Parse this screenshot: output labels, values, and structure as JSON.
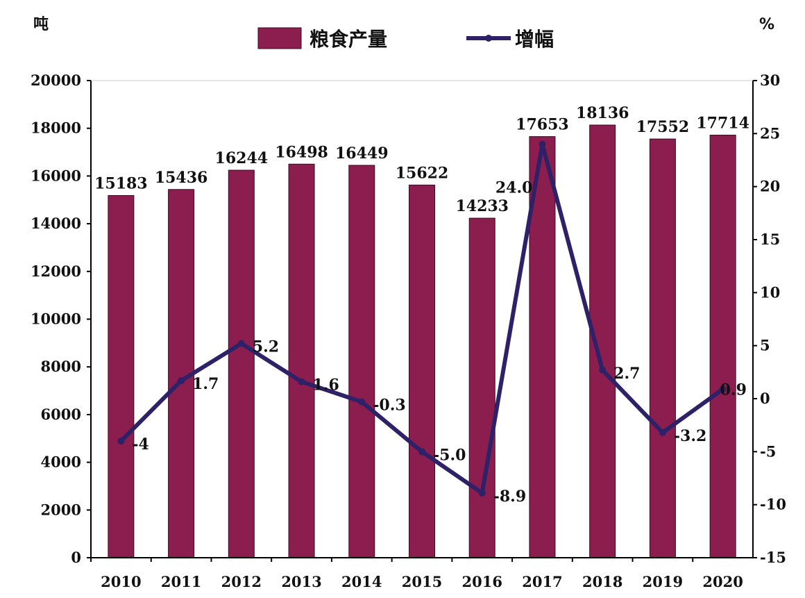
{
  "chart_data": {
    "type": "bar",
    "categories": [
      "2010",
      "2011",
      "2012",
      "2013",
      "2014",
      "2015",
      "2016",
      "2017",
      "2018",
      "2019",
      "2020"
    ],
    "series": [
      {
        "name": "粮食产量",
        "type": "bar",
        "axis": "left",
        "values": [
          15183,
          15436,
          16244,
          16498,
          16449,
          15622,
          14233,
          17653,
          18136,
          17552,
          17714
        ],
        "labels": [
          "15183",
          "15436",
          "16244",
          "16498",
          "16449",
          "15622",
          "14233",
          "17653",
          "18136",
          "17552",
          "17714"
        ]
      },
      {
        "name": "增幅",
        "type": "line",
        "axis": "right",
        "values": [
          -4,
          1.7,
          5.2,
          1.6,
          -0.3,
          -5.0,
          -8.9,
          24.0,
          2.7,
          -3.2,
          0.9
        ],
        "labels": [
          "-4",
          "1.7",
          "5.2",
          "1.6",
          "-0.3",
          "-5.0",
          "-8.9",
          "24.0",
          "2.7",
          "-3.2",
          "0.9"
        ]
      }
    ],
    "left_axis": {
      "unit": "吨",
      "min": 0,
      "max": 20000,
      "ticks": [
        "0",
        "2000",
        "4000",
        "6000",
        "8000",
        "10000",
        "12000",
        "14000",
        "16000",
        "18000",
        "20000"
      ]
    },
    "right_axis": {
      "unit": "%",
      "min": -15,
      "max": 30,
      "ticks": [
        "-15",
        "-10",
        "-5",
        "0",
        "5",
        "10",
        "15",
        "20",
        "25",
        "30"
      ]
    },
    "legend_position": "top",
    "grid": false,
    "colors": {
      "bar": "#8b1e4f",
      "bar_edge": "#3a0a20",
      "line": "#2e2167",
      "axis": "#000000"
    }
  }
}
